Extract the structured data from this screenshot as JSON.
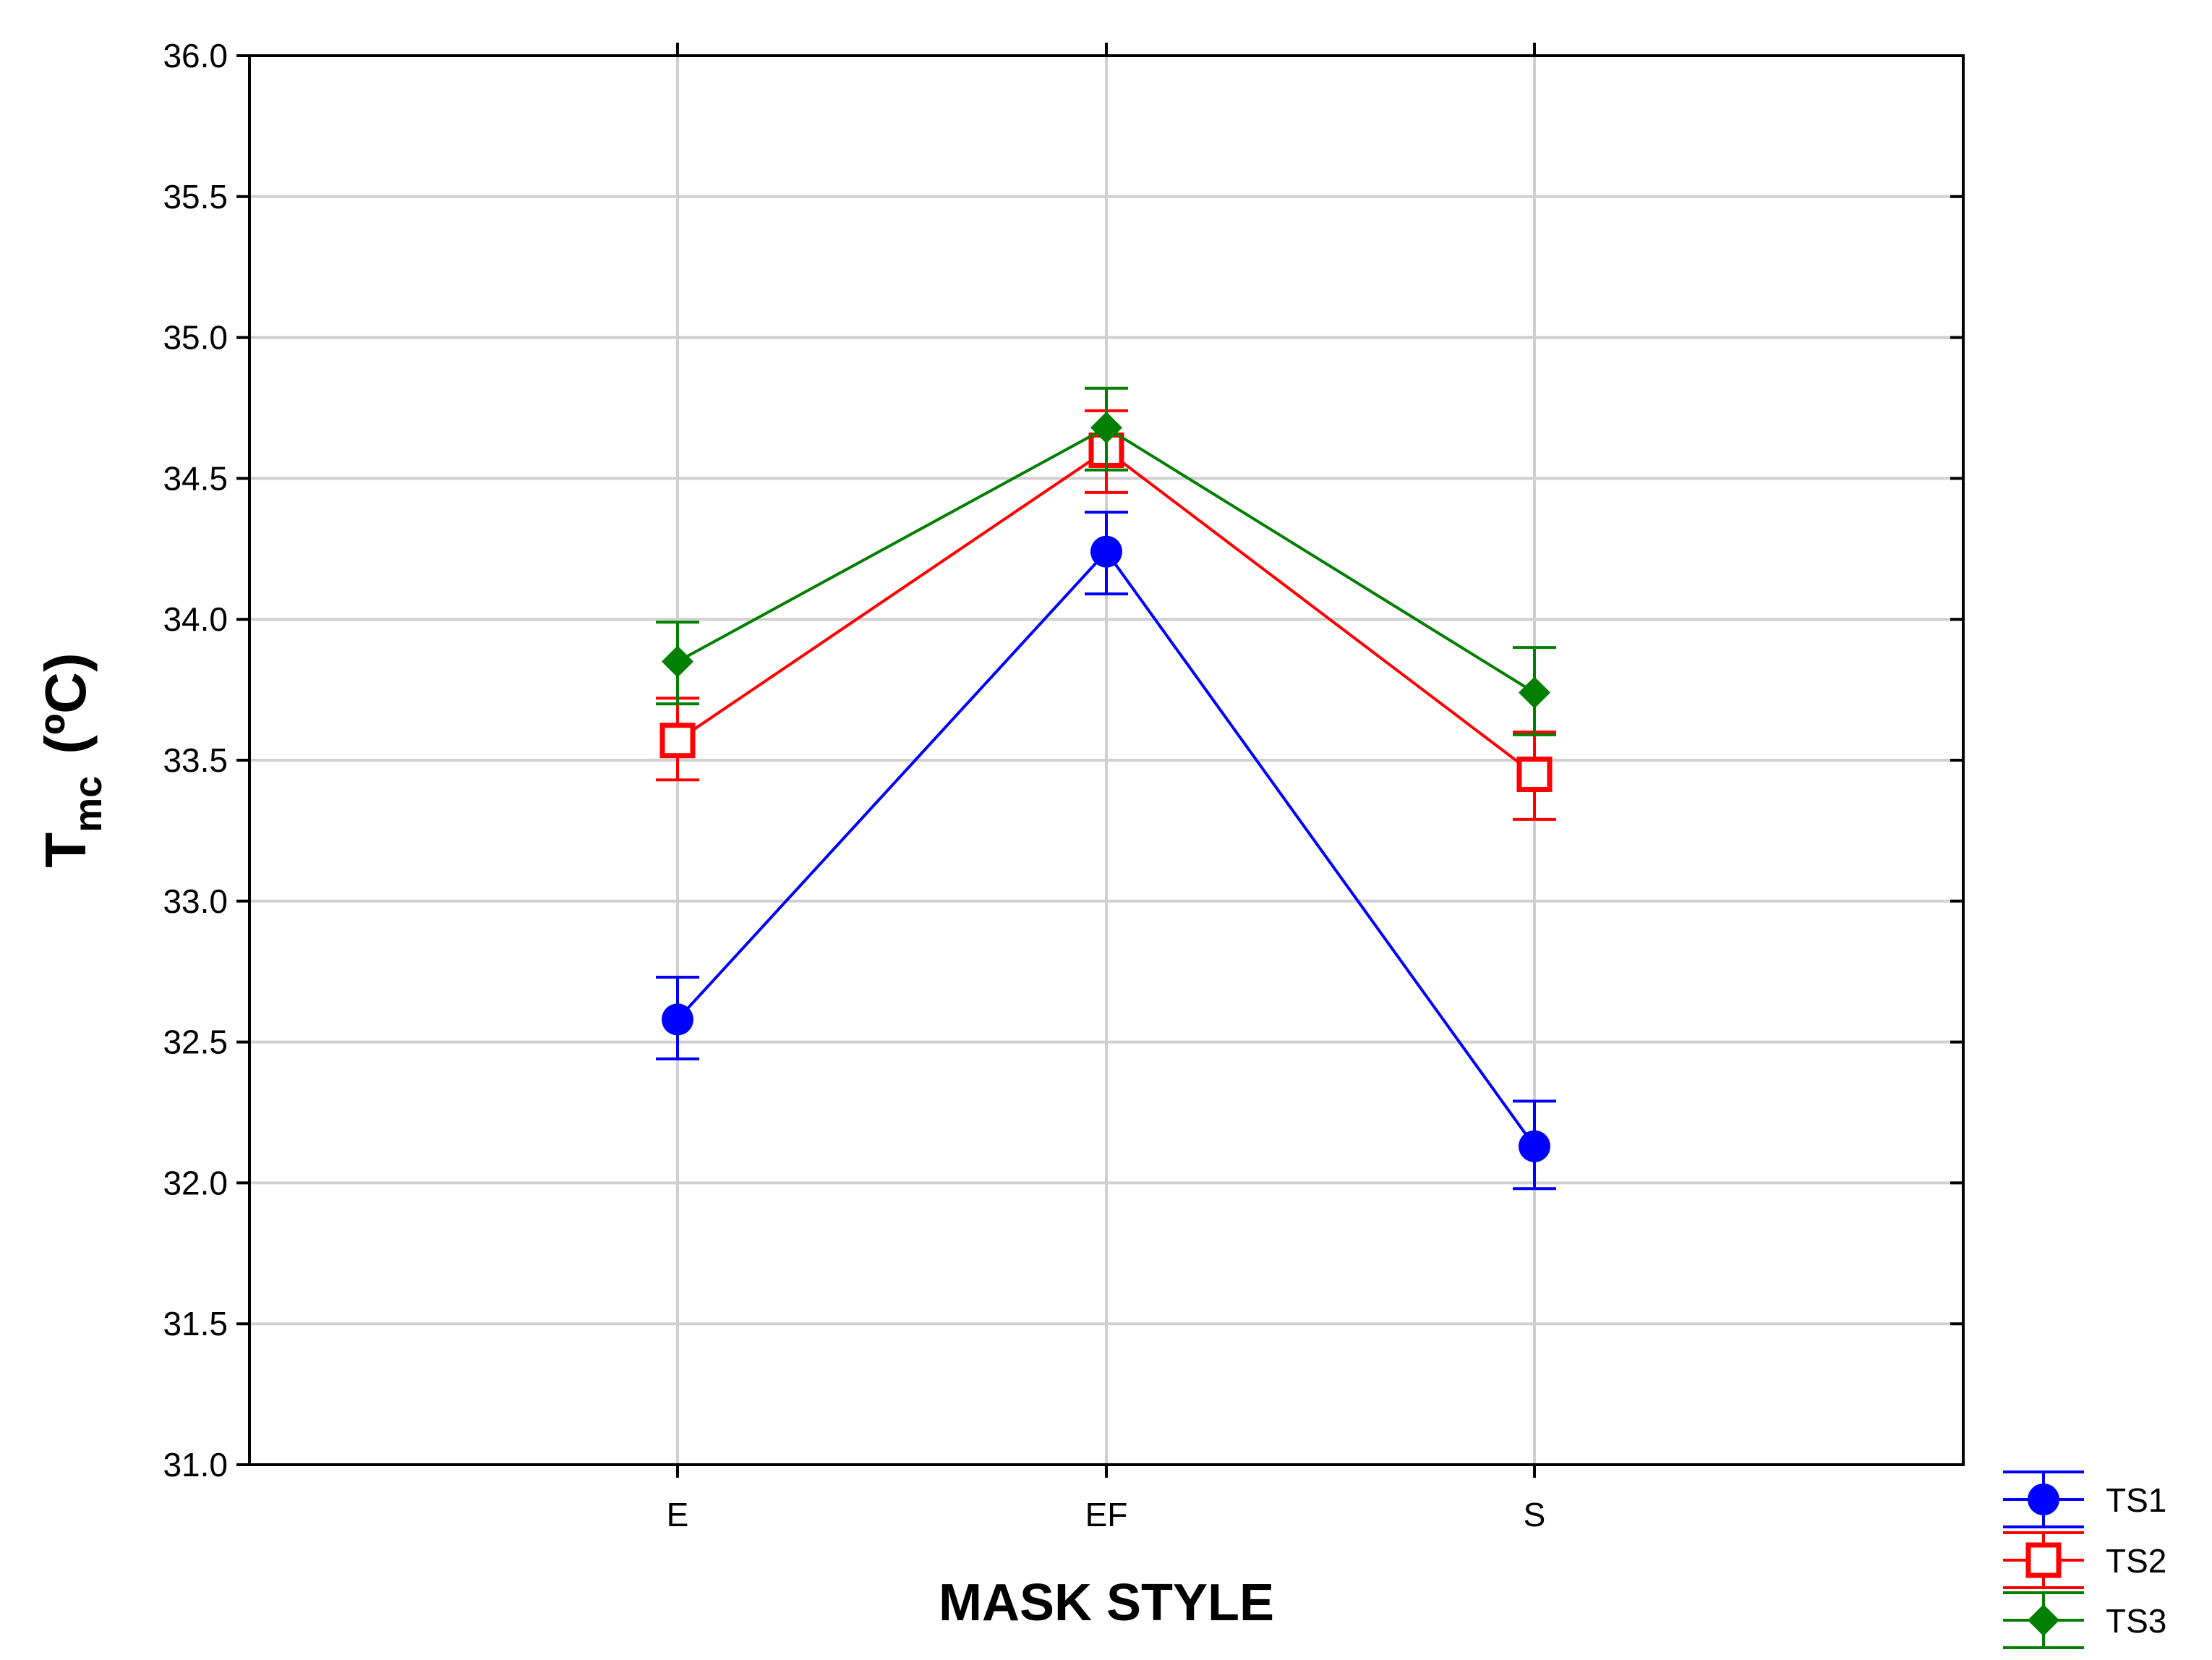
{
  "chart_data": {
    "type": "line",
    "xlabel": "MASK STYLE",
    "ylabel_main": "T",
    "ylabel_sub": "mc",
    "ylabel_unit": "(ºC)",
    "categories": [
      "E",
      "EF",
      "S"
    ],
    "ylim": [
      31.0,
      36.0
    ],
    "yticks": [
      "31.0",
      "31.5",
      "32.0",
      "32.5",
      "33.0",
      "33.5",
      "34.0",
      "34.5",
      "35.0",
      "35.5",
      "36.0"
    ],
    "grid": true,
    "legend_position": "bottom-right",
    "series": [
      {
        "name": "TS1",
        "color": "#0000ff",
        "marker": "circle",
        "values": [
          32.58,
          34.24,
          32.13
        ],
        "lower": [
          32.44,
          34.09,
          31.98
        ],
        "upper": [
          32.73,
          34.38,
          32.29
        ]
      },
      {
        "name": "TS2",
        "color": "#ff0000",
        "marker": "square-open",
        "values": [
          33.57,
          34.6,
          33.45
        ],
        "lower": [
          33.43,
          34.45,
          33.29
        ],
        "upper": [
          33.72,
          34.74,
          33.6
        ]
      },
      {
        "name": "TS3",
        "color": "#007f00",
        "marker": "diamond",
        "values": [
          33.85,
          34.68,
          33.74
        ],
        "lower": [
          33.7,
          34.53,
          33.59
        ],
        "upper": [
          33.99,
          34.82,
          33.9
        ]
      }
    ]
  }
}
